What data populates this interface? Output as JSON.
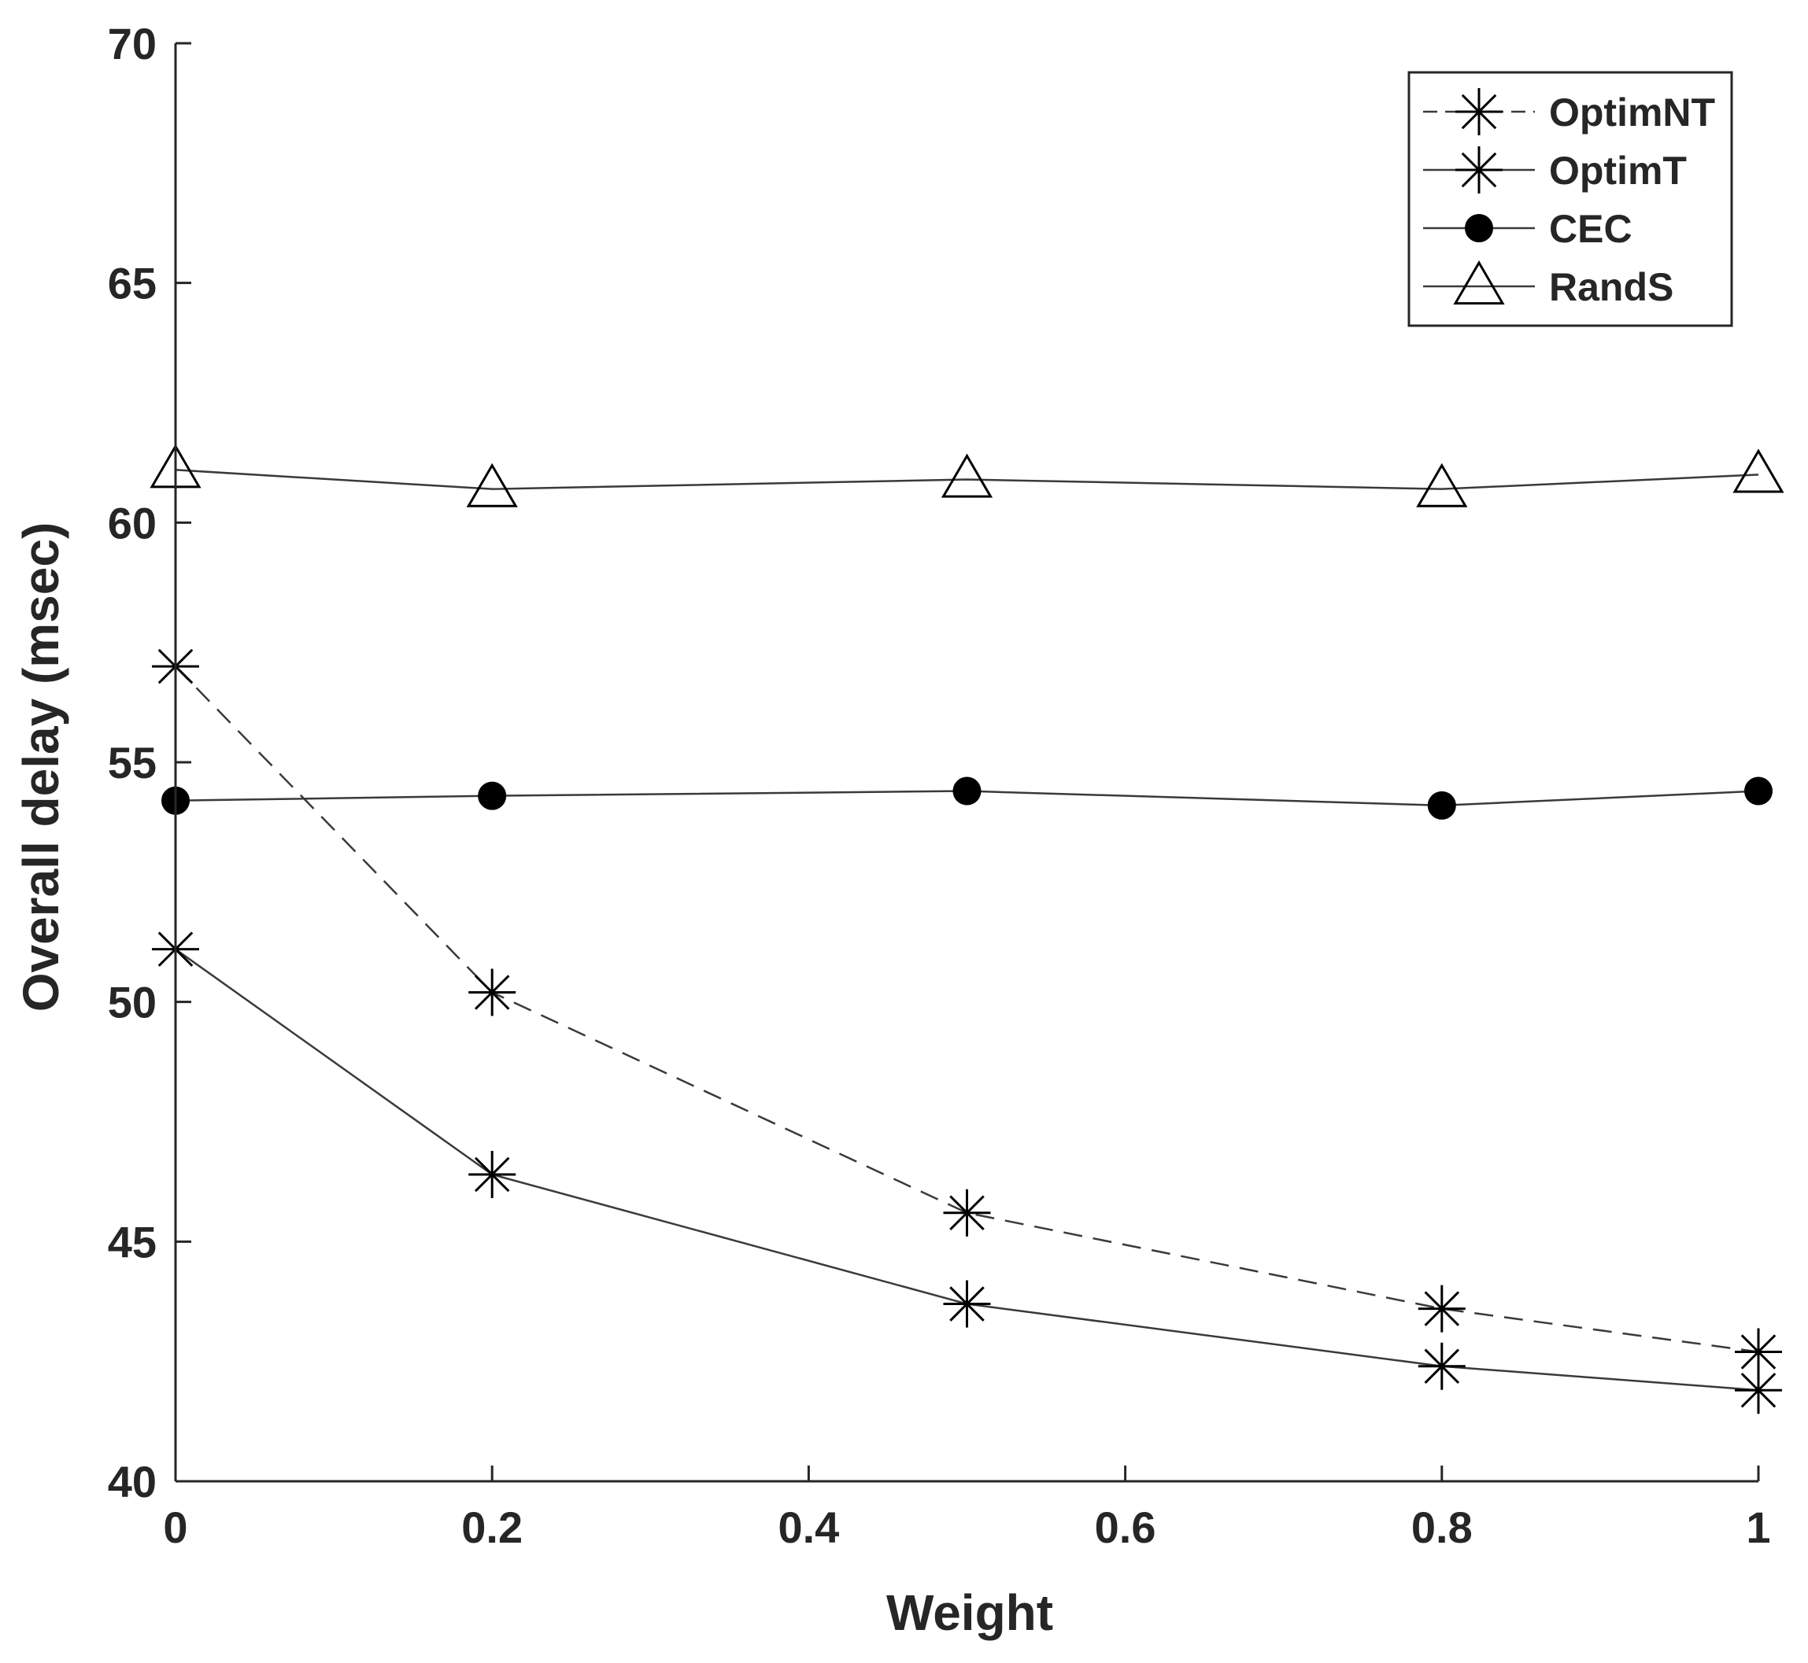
{
  "chart_data": {
    "type": "line",
    "title": "",
    "xlabel": "Weight",
    "ylabel": "Overall delay (msec)",
    "xlim": [
      0,
      1
    ],
    "ylim": [
      40,
      70
    ],
    "xticks": [
      0,
      0.2,
      0.4,
      0.6,
      0.8,
      1
    ],
    "xtick_labels": [
      "0",
      "0.2",
      "0.4",
      "0.6",
      "0.8",
      "1"
    ],
    "yticks": [
      40,
      45,
      50,
      55,
      60,
      65,
      70
    ],
    "ytick_labels": [
      "40",
      "45",
      "50",
      "55",
      "60",
      "65",
      "70"
    ],
    "grid": false,
    "legend_position": "top-right",
    "x": [
      0,
      0.2,
      0.5,
      0.8,
      1
    ],
    "series": [
      {
        "name": "OptimNT",
        "marker": "asterisk",
        "line_style": "dashed",
        "values": [
          57.0,
          50.2,
          45.6,
          43.6,
          42.7
        ]
      },
      {
        "name": "OptimT",
        "marker": "asterisk",
        "line_style": "solid",
        "values": [
          51.1,
          46.4,
          43.7,
          42.4,
          41.9
        ]
      },
      {
        "name": "CEC",
        "marker": "filled-circle",
        "line_style": "solid",
        "values": [
          54.2,
          54.3,
          54.4,
          54.1,
          54.4
        ]
      },
      {
        "name": "RandS",
        "marker": "open-triangle",
        "line_style": "solid",
        "values": [
          61.1,
          60.7,
          60.9,
          60.7,
          61.0
        ]
      }
    ]
  },
  "colors": {
    "axis": "#262626",
    "text": "#262626",
    "line": "#3a3a3a",
    "marker": "#000000",
    "background": "#ffffff"
  }
}
